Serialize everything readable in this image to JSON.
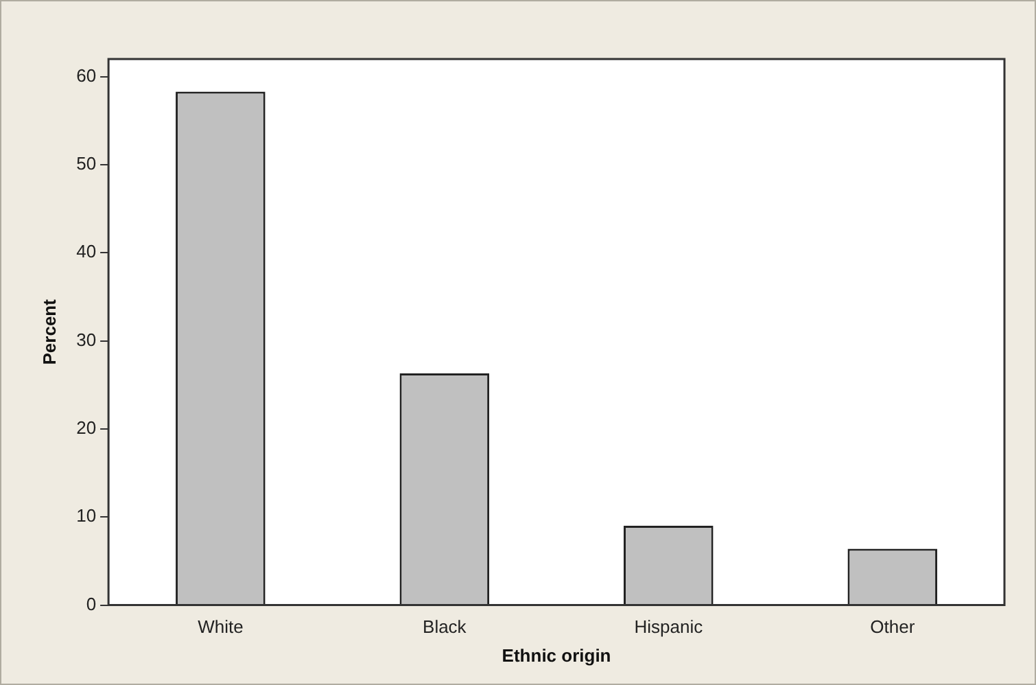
{
  "chart_data": {
    "type": "bar",
    "xlabel": "Ethnic origin",
    "ylabel": "Percent",
    "categories": [
      "White",
      "Black",
      "Hispanic",
      "Other"
    ],
    "values": [
      58.3,
      26.3,
      9.0,
      6.4
    ],
    "color": "#c0c0c0",
    "ylim": [
      0,
      62
    ],
    "yticks": [
      0,
      10,
      20,
      30,
      40,
      50,
      60
    ],
    "grid": false
  }
}
